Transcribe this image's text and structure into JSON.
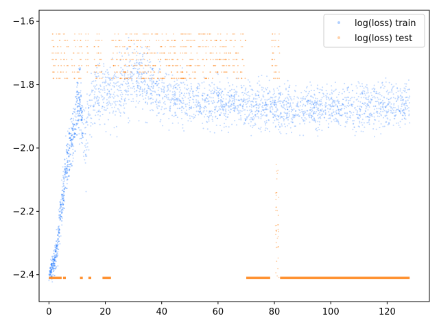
{
  "chart_data": {
    "type": "scatter",
    "title": "",
    "xlabel": "",
    "ylabel": "",
    "xlim": [
      -3.5,
      135
    ],
    "ylim": [
      -2.485,
      -1.565
    ],
    "x_ticks": [
      0,
      20,
      40,
      60,
      80,
      100,
      120
    ],
    "y_ticks": [
      -2.4,
      -2.2,
      -2.0,
      -1.8,
      -1.6
    ],
    "x_tick_labels": [
      "0",
      "20",
      "40",
      "60",
      "80",
      "100",
      "120"
    ],
    "y_tick_labels": [
      "−2.4",
      "−2.2",
      "−2.0",
      "−1.8",
      "−1.6"
    ],
    "grid": false,
    "legend": {
      "position": "top-right",
      "entries": [
        "log(loss) train",
        "log(loss) test"
      ]
    },
    "series": [
      {
        "name": "log(loss) train",
        "color": "#1f77ff",
        "trend": {
          "x": [
            0,
            1,
            2,
            3,
            4,
            5,
            6,
            7,
            8,
            9,
            10,
            11,
            12,
            13,
            14,
            15,
            16,
            18,
            20,
            24,
            28,
            30,
            32,
            34,
            36,
            40,
            45,
            50,
            55,
            60,
            65,
            70,
            75,
            80,
            85,
            90,
            95,
            100,
            110,
            120,
            128
          ],
          "y": [
            -2.41,
            -2.38,
            -2.36,
            -2.3,
            -2.22,
            -2.15,
            -2.08,
            -2.02,
            -1.98,
            -1.95,
            -1.88,
            -1.85,
            -1.95,
            -1.97,
            -1.9,
            -1.87,
            -1.84,
            -1.83,
            -1.83,
            -1.82,
            -1.79,
            -1.78,
            -1.77,
            -1.79,
            -1.8,
            -1.83,
            -1.84,
            -1.85,
            -1.86,
            -1.86,
            -1.86,
            -1.87,
            -1.87,
            -1.87,
            -1.87,
            -1.87,
            -1.87,
            -1.87,
            -1.87,
            -1.86,
            -1.86
          ],
          "spread": [
            0.01,
            0.03,
            0.04,
            0.05,
            0.06,
            0.06,
            0.07,
            0.07,
            0.07,
            0.07,
            0.08,
            0.08,
            0.09,
            0.09,
            0.08,
            0.07,
            0.07,
            0.07,
            0.07,
            0.07,
            0.07,
            0.07,
            0.07,
            0.07,
            0.06,
            0.06,
            0.05,
            0.05,
            0.05,
            0.05,
            0.05,
            0.05,
            0.05,
            0.05,
            0.05,
            0.05,
            0.05,
            0.05,
            0.05,
            0.05,
            0.05
          ]
        }
      },
      {
        "name": "log(loss) test",
        "color": "#ff7f0e",
        "baseline": -2.41,
        "baseline_segments": [
          [
            0,
            4.5
          ],
          [
            5,
            6
          ],
          [
            11,
            12
          ],
          [
            14,
            15
          ],
          [
            19,
            22
          ],
          [
            70,
            78.5
          ],
          [
            82,
            128
          ]
        ],
        "upper_levels": [
          -1.64,
          -1.66,
          -1.68,
          -1.7,
          -1.72,
          -1.74,
          -1.76,
          -1.78
        ],
        "upper_segments": [
          [
            1,
            4.5
          ],
          [
            5,
            7
          ],
          [
            8,
            9.5
          ],
          [
            10,
            12
          ],
          [
            13,
            14
          ],
          [
            16,
            19
          ],
          [
            22,
            70
          ],
          [
            79,
            82
          ]
        ],
        "spike": {
          "x": 81,
          "from": -2.41,
          "to": -2.05
        }
      }
    ]
  }
}
